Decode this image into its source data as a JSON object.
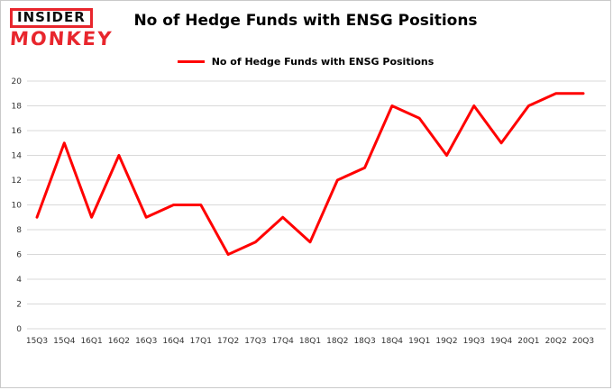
{
  "logo": {
    "line1": "INSIDER",
    "line2": "MONKEY"
  },
  "chart_data": {
    "type": "line",
    "title": "No of Hedge Funds with ENSG Positions",
    "legend": "No of Hedge Funds with ENSG Positions",
    "categories": [
      "15Q3",
      "15Q4",
      "16Q1",
      "16Q2",
      "16Q3",
      "16Q4",
      "17Q1",
      "17Q2",
      "17Q3",
      "17Q4",
      "18Q1",
      "18Q2",
      "18Q3",
      "18Q4",
      "19Q1",
      "19Q2",
      "19Q3",
      "19Q4",
      "20Q1",
      "20Q2",
      "20Q3"
    ],
    "values": [
      9,
      15,
      9,
      14,
      9,
      10,
      10,
      6,
      7,
      9,
      7,
      12,
      13,
      18,
      17,
      14,
      18,
      15,
      18,
      19,
      19
    ],
    "ylim": [
      0,
      20
    ],
    "ytick_step": 2,
    "line_color": "#ff0000",
    "grid_color": "#d9d9d9",
    "grid": true,
    "legend_position": "top"
  }
}
